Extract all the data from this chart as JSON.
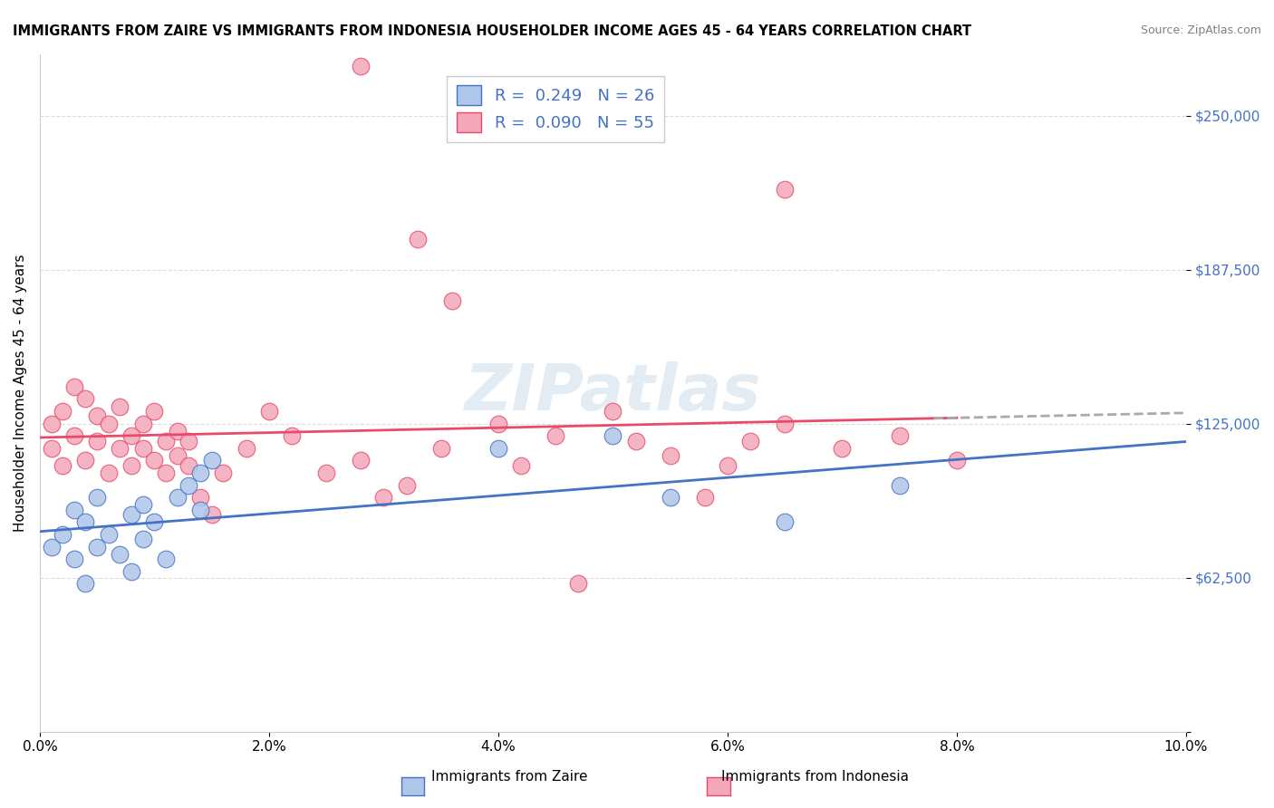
{
  "title": "IMMIGRANTS FROM ZAIRE VS IMMIGRANTS FROM INDONESIA HOUSEHOLDER INCOME AGES 45 - 64 YEARS CORRELATION CHART",
  "source": "Source: ZipAtlas.com",
  "xlabel": "",
  "ylabel": "Householder Income Ages 45 - 64 years",
  "xlim": [
    0.0,
    0.1
  ],
  "ylim": [
    0,
    275000
  ],
  "yticks": [
    0,
    62500,
    125000,
    187500,
    250000
  ],
  "ytick_labels": [
    "",
    "$62,500",
    "$125,000",
    "$187,500",
    "$250,000"
  ],
  "xticks": [
    0.0,
    0.02,
    0.04,
    0.06,
    0.08,
    0.1
  ],
  "xtick_labels": [
    "0.0%",
    "2.0%",
    "4.0%",
    "6.0%",
    "8.0%",
    "10.0%"
  ],
  "legend_r1": "R =  0.249   N = 26",
  "legend_r2": "R =  0.090   N = 55",
  "legend_label1": "Immigrants from Zaire",
  "legend_label2": "Immigrants from Indonesia",
  "color_zaire": "#aec6e8",
  "color_indonesia": "#f4a7b9",
  "line_color_zaire": "#4472c4",
  "line_color_indonesia": "#e84b6a",
  "background_color": "#ffffff",
  "watermark": "ZIPatlas",
  "zaire_x": [
    0.001,
    0.002,
    0.003,
    0.003,
    0.004,
    0.004,
    0.005,
    0.005,
    0.006,
    0.007,
    0.008,
    0.008,
    0.009,
    0.009,
    0.01,
    0.011,
    0.012,
    0.013,
    0.014,
    0.014,
    0.015,
    0.04,
    0.05,
    0.055,
    0.065,
    0.075
  ],
  "zaire_y": [
    75000,
    80000,
    70000,
    90000,
    60000,
    85000,
    75000,
    95000,
    80000,
    72000,
    88000,
    65000,
    78000,
    92000,
    85000,
    70000,
    95000,
    100000,
    90000,
    105000,
    110000,
    115000,
    120000,
    95000,
    85000,
    100000
  ],
  "indonesia_x": [
    0.001,
    0.001,
    0.002,
    0.002,
    0.003,
    0.003,
    0.004,
    0.004,
    0.005,
    0.005,
    0.006,
    0.006,
    0.007,
    0.007,
    0.008,
    0.008,
    0.009,
    0.009,
    0.01,
    0.01,
    0.011,
    0.011,
    0.012,
    0.012,
    0.013,
    0.013,
    0.014,
    0.015,
    0.016,
    0.018,
    0.02,
    0.022,
    0.025,
    0.028,
    0.03,
    0.032,
    0.035,
    0.04,
    0.042,
    0.045,
    0.05,
    0.052,
    0.055,
    0.058,
    0.06,
    0.062,
    0.065,
    0.07,
    0.075,
    0.08,
    0.028,
    0.033,
    0.036,
    0.047,
    0.065
  ],
  "indonesia_y": [
    115000,
    125000,
    130000,
    108000,
    120000,
    140000,
    110000,
    135000,
    128000,
    118000,
    105000,
    125000,
    115000,
    132000,
    120000,
    108000,
    115000,
    125000,
    110000,
    130000,
    118000,
    105000,
    122000,
    112000,
    118000,
    108000,
    95000,
    88000,
    105000,
    115000,
    130000,
    120000,
    105000,
    110000,
    95000,
    100000,
    115000,
    125000,
    108000,
    120000,
    130000,
    118000,
    112000,
    95000,
    108000,
    118000,
    125000,
    115000,
    120000,
    110000,
    270000,
    200000,
    175000,
    60000,
    220000
  ]
}
